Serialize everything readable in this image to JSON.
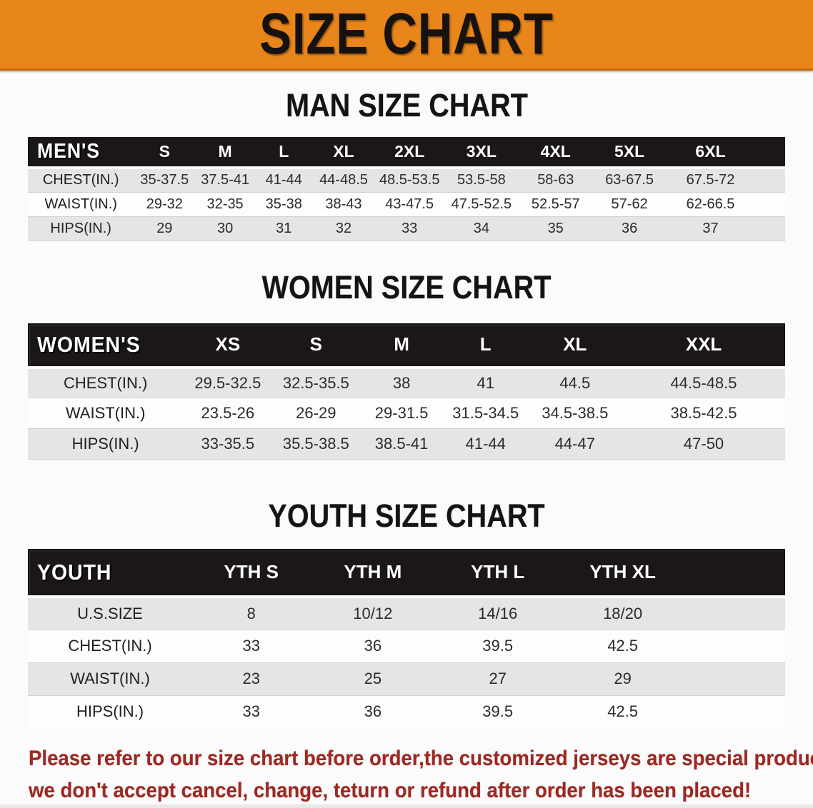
{
  "banner": {
    "title": "SIZE CHART",
    "bg_color": "#E8861B"
  },
  "sections": {
    "men": {
      "heading": "MAN SIZE CHART",
      "header_label": "MEN'S",
      "columns": [
        "S",
        "M",
        "L",
        "XL",
        "2XL",
        "3XL",
        "4XL",
        "5XL",
        "6XL"
      ],
      "rows": [
        {
          "label": "CHEST(IN.)",
          "values": [
            "35-37.5",
            "37.5-41",
            "41-44",
            "44-48.5",
            "48.5-53.5",
            "53.5-58",
            "58-63",
            "63-67.5",
            "67.5-72"
          ]
        },
        {
          "label": "WAIST(IN.)",
          "values": [
            "29-32",
            "32-35",
            "35-38",
            "38-43",
            "43-47.5",
            "47.5-52.5",
            "52.5-57",
            "57-62",
            "62-66.5"
          ]
        },
        {
          "label": "HIPS(IN.)",
          "values": [
            "29",
            "30",
            "31",
            "32",
            "33",
            "34",
            "35",
            "36",
            "37"
          ]
        }
      ]
    },
    "women": {
      "heading": "WOMEN SIZE CHART",
      "header_label": "WOMEN'S",
      "columns": [
        "XS",
        "S",
        "M",
        "L",
        "XL",
        "XXL"
      ],
      "rows": [
        {
          "label": "CHEST(IN.)",
          "values": [
            "29.5-32.5",
            "32.5-35.5",
            "38",
            "41",
            "44.5",
            "44.5-48.5"
          ]
        },
        {
          "label": "WAIST(IN.)",
          "values": [
            "23.5-26",
            "26-29",
            "29-31.5",
            "31.5-34.5",
            "34.5-38.5",
            "38.5-42.5"
          ]
        },
        {
          "label": "HIPS(IN.)",
          "values": [
            "33-35.5",
            "35.5-38.5",
            "38.5-41",
            "41-44",
            "44-47",
            "47-50"
          ]
        }
      ]
    },
    "youth": {
      "heading": "YOUTH SIZE CHART",
      "header_label": "YOUTH",
      "columns": [
        "YTH S",
        "YTH M",
        "YTH L",
        "YTH XL"
      ],
      "rows": [
        {
          "label": "U.S.SIZE",
          "values": [
            "8",
            "10/12",
            "14/16",
            "18/20"
          ]
        },
        {
          "label": "CHEST(IN.)",
          "values": [
            "33",
            "36",
            "39.5",
            "42.5"
          ]
        },
        {
          "label": "WAIST(IN.)",
          "values": [
            "23",
            "25",
            "27",
            "29"
          ]
        },
        {
          "label": "HIPS(IN.)",
          "values": [
            "33",
            "36",
            "39.5",
            "42.5"
          ]
        }
      ]
    }
  },
  "disclaimer": {
    "line1": "Please refer to our size chart before order,the customized jerseys are special products,",
    "line2": "we don't accept cancel, change, teturn or refund after order has been placed!",
    "color": "#9E2823"
  }
}
